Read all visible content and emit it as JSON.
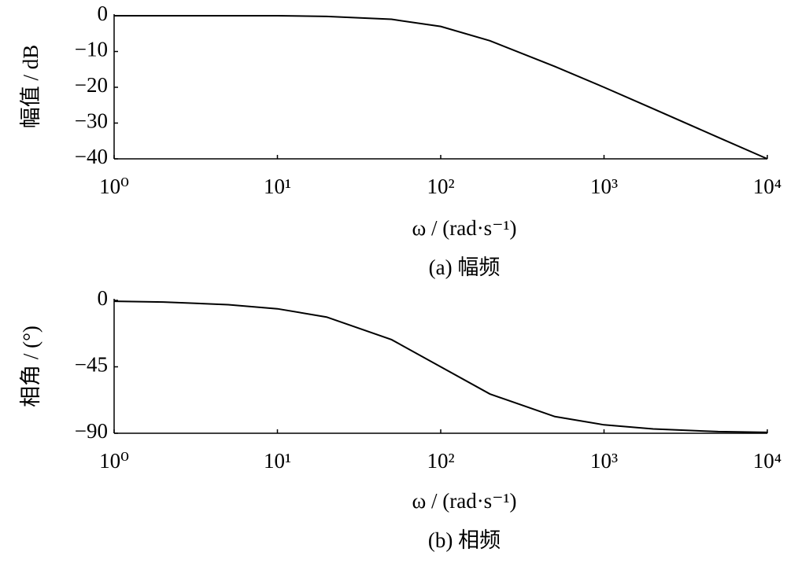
{
  "chart_data": [
    {
      "type": "line",
      "log_x": true,
      "x": [
        1,
        2,
        5,
        10,
        20,
        50,
        100,
        200,
        500,
        1000,
        2000,
        5000,
        10000
      ],
      "series": [
        {
          "color": "#000000",
          "values": [
            0,
            0,
            0,
            0,
            -0.2,
            -1,
            -3,
            -7,
            -14.2,
            -20,
            -26,
            -34,
            -40
          ]
        }
      ],
      "xlim": [
        1,
        10000
      ],
      "xticks": [
        {
          "value": 1,
          "label": "10⁰"
        },
        {
          "value": 10,
          "label": "10¹"
        },
        {
          "value": 100,
          "label": "10²"
        },
        {
          "value": 1000,
          "label": "10³"
        },
        {
          "value": 10000,
          "label": "10⁴"
        }
      ],
      "ylim": [
        -40,
        0
      ],
      "yticks": [
        0,
        {
          "value": -10,
          "label": "−10"
        },
        {
          "value": -20,
          "label": "−20"
        },
        {
          "value": -30,
          "label": "−30"
        },
        {
          "value": -40,
          "label": "−40"
        }
      ],
      "xlabel": "ω / (rad·s⁻¹)",
      "ylabel": "幅值 / dB",
      "caption": "(a)  幅频"
    },
    {
      "type": "line",
      "log_x": true,
      "x": [
        1,
        2,
        5,
        10,
        20,
        50,
        100,
        200,
        500,
        1000,
        2000,
        5000,
        10000
      ],
      "series": [
        {
          "color": "#000000",
          "values": [
            -0.6,
            -1.1,
            -2.9,
            -5.7,
            -11.3,
            -26.6,
            -45,
            -63.4,
            -78.7,
            -84.3,
            -87.1,
            -88.9,
            -89.4
          ]
        }
      ],
      "xlim": [
        1,
        10000
      ],
      "xticks": [
        {
          "value": 1,
          "label": "10⁰"
        },
        {
          "value": 10,
          "label": "10¹"
        },
        {
          "value": 100,
          "label": "10²"
        },
        {
          "value": 1000,
          "label": "10³"
        },
        {
          "value": 10000,
          "label": "10⁴"
        }
      ],
      "ylim": [
        -90,
        0
      ],
      "yticks": [
        0,
        {
          "value": -45,
          "label": "−45"
        },
        {
          "value": -90,
          "label": "−90"
        }
      ],
      "xlabel": "ω / (rad·s⁻¹)",
      "ylabel": "相角 / (°)",
      "caption": "(b)  相频"
    }
  ]
}
